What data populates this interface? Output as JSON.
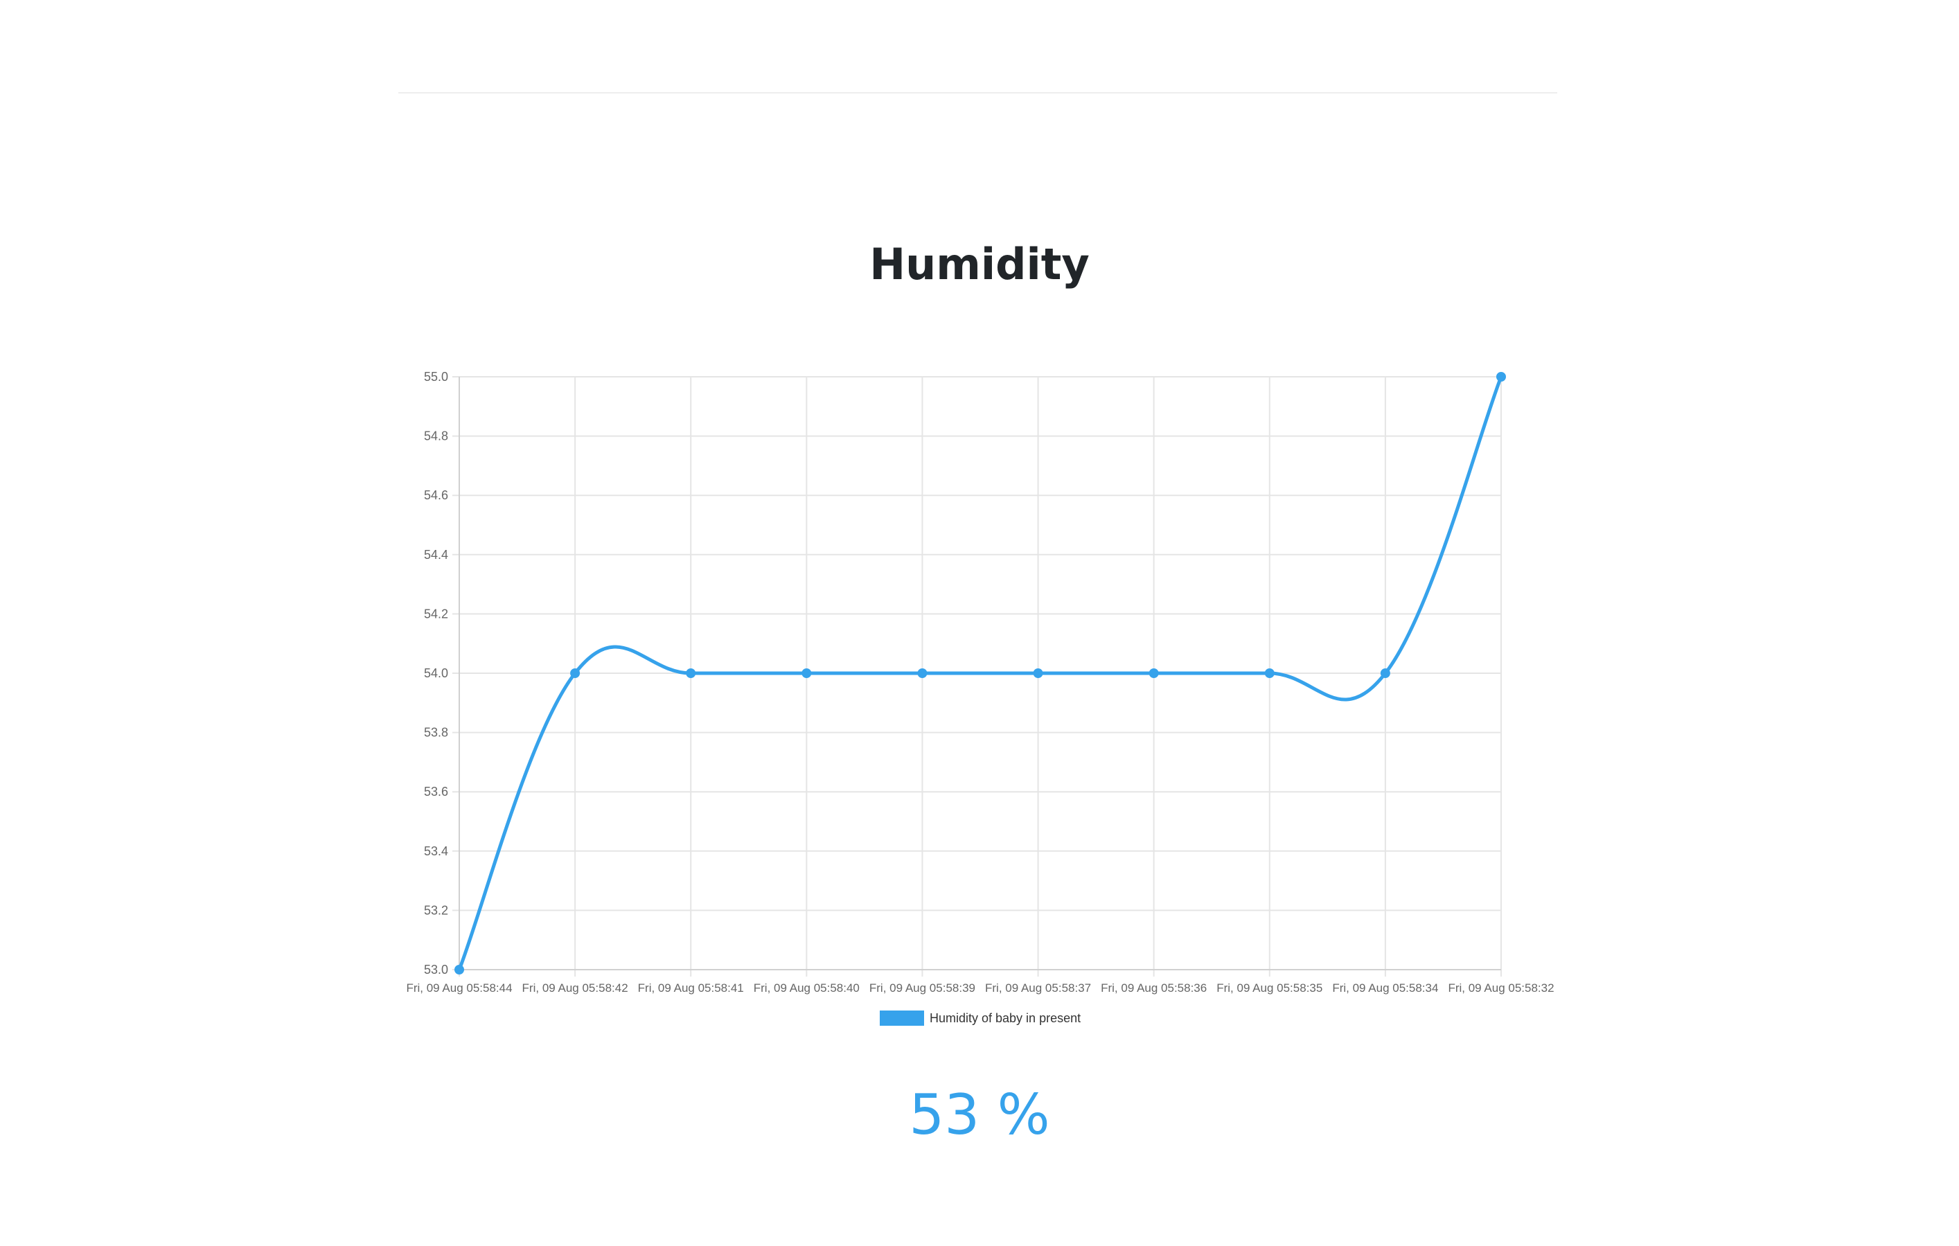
{
  "page": {
    "title": "Humidity",
    "reading": "53 %"
  },
  "colors": {
    "series": "#36a2eb",
    "grid": "#e5e5e5",
    "tick_text": "#666666",
    "legend_text": "#333333"
  },
  "chart_data": {
    "type": "line",
    "title": "",
    "xlabel": "",
    "ylabel": "",
    "categories": [
      "Fri, 09 Aug 05:58:44",
      "Fri, 09 Aug 05:58:42",
      "Fri, 09 Aug 05:58:41",
      "Fri, 09 Aug 05:58:40",
      "Fri, 09 Aug 05:58:39",
      "Fri, 09 Aug 05:58:37",
      "Fri, 09 Aug 05:58:36",
      "Fri, 09 Aug 05:58:35",
      "Fri, 09 Aug 05:58:34",
      "Fri, 09 Aug 05:58:32"
    ],
    "series": [
      {
        "name": "Humidity of baby in present",
        "values": [
          53,
          54,
          54,
          54,
          54,
          54,
          54,
          54,
          54,
          55
        ]
      }
    ],
    "ylim": [
      53.0,
      55.0
    ],
    "yticks": [
      "53.0",
      "53.2",
      "53.4",
      "53.6",
      "53.8",
      "54.0",
      "54.2",
      "54.4",
      "54.6",
      "54.8",
      "55.0"
    ],
    "grid": true,
    "legend": "bottom"
  }
}
